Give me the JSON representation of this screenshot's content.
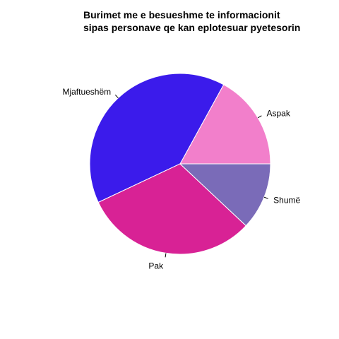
{
  "chart_data": {
    "type": "pie",
    "title_lines": [
      "Burimet me e besueshme te informacionit",
      "sipas personave qe kan eplotesuar pyetesorin"
    ],
    "start": "3-o'clock",
    "direction": "counterclockwise",
    "slices": [
      {
        "label": "Aspak",
        "value": 17,
        "color": "#F27FCB"
      },
      {
        "label": "Mjaftueshëm",
        "value": 40,
        "color": "#3B1BEB"
      },
      {
        "label": "Pak",
        "value": 31,
        "color": "#D82295"
      },
      {
        "label": "Shumë",
        "value": 12,
        "color": "#7A6BB8"
      }
    ],
    "border_color": "#ffffff"
  }
}
